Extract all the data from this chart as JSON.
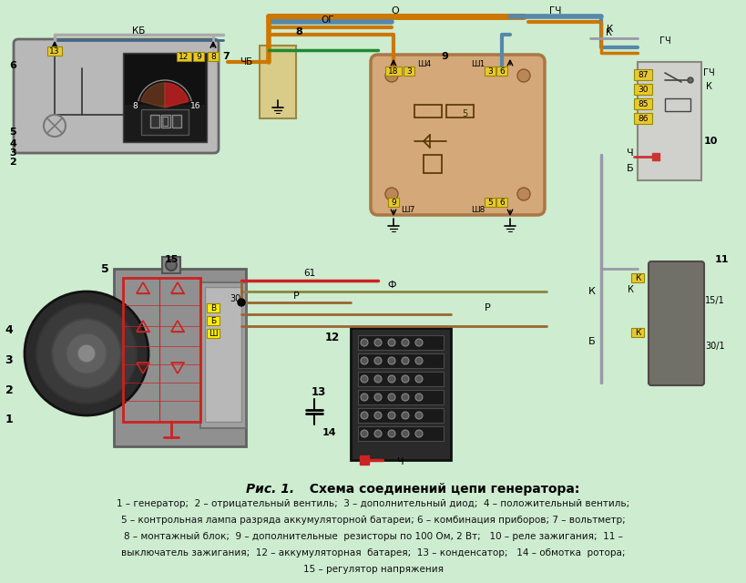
{
  "background_color": "#ceecd0",
  "caption_lines": [
    "1 – генератор;  2 – отрицательный вентиль;  3 – дополнительный диод;  4 – положительный вентиль;",
    "5 – контрольная лампа разряда аккумуляторной батареи; 6 – комбинация приборов; 7 – вольтметр;",
    "8 – монтажный блок;  9 – дополнительные  резисторы по 100 Ом, 2 Вт;   10 – реле зажигания;  11 –",
    "выключатель зажигания;  12 – аккумуляторная  батарея;  13 – конденсатор;   14 – обмотка  ротора;",
    "15 – регулятор напряжения"
  ],
  "fig_width": 8.2,
  "fig_height": 6.4,
  "dpi": 100
}
